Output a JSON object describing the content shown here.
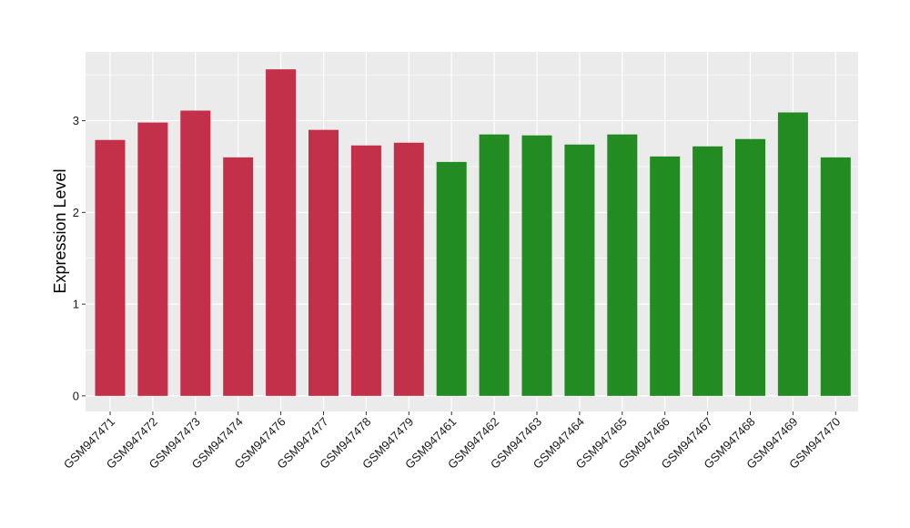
{
  "chart_data": {
    "type": "bar",
    "title": "",
    "xlabel": "",
    "ylabel": "Expression Level",
    "ylim": [
      -0.17,
      3.75
    ],
    "yticks": [
      0,
      1,
      2,
      3
    ],
    "grid": true,
    "legend": "none",
    "categories": [
      "GSM947471",
      "GSM947472",
      "GSM947473",
      "GSM947474",
      "GSM947476",
      "GSM947477",
      "GSM947478",
      "GSM947479",
      "GSM947461",
      "GSM947462",
      "GSM947463",
      "GSM947464",
      "GSM947465",
      "GSM947466",
      "GSM947467",
      "GSM947468",
      "GSM947469",
      "GSM947470"
    ],
    "values": [
      2.79,
      2.98,
      3.11,
      2.6,
      3.56,
      2.9,
      2.73,
      2.76,
      2.55,
      2.85,
      2.84,
      2.74,
      2.85,
      2.61,
      2.72,
      2.8,
      3.09,
      2.6
    ],
    "bar_colors": [
      "#c3304a",
      "#c3304a",
      "#c3304a",
      "#c3304a",
      "#c3304a",
      "#c3304a",
      "#c3304a",
      "#c3304a",
      "#228b22",
      "#228b22",
      "#228b22",
      "#228b22",
      "#228b22",
      "#228b22",
      "#228b22",
      "#228b22",
      "#228b22",
      "#228b22"
    ],
    "panel_background": "#ebebeb",
    "grid_color": "#ffffff"
  }
}
